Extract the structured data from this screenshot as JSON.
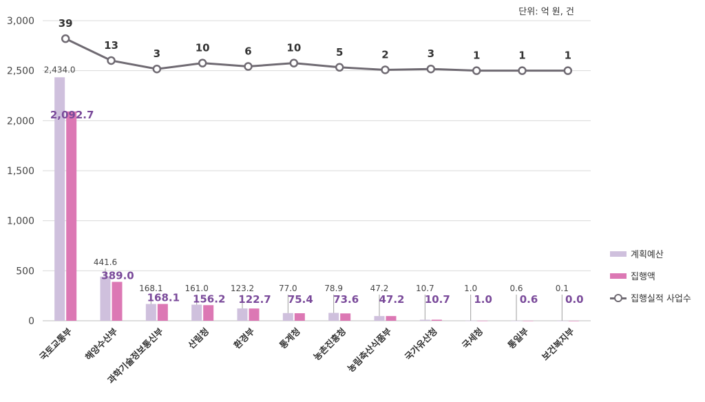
{
  "chart_data": {
    "type": "bar",
    "unit_label": "단위: 억 원, 건",
    "categories": [
      "국토교통부",
      "해양수산부",
      "과학기술정보통신부",
      "산림청",
      "환경부",
      "통계청",
      "농촌진흥청",
      "농림축산식품부",
      "국가유산청",
      "국세청",
      "통일부",
      "보건복지부"
    ],
    "series": [
      {
        "name": "계획예산",
        "kind": "bar",
        "color": "#cfc0dd",
        "values": [
          2434.0,
          441.6,
          168.1,
          161.0,
          123.2,
          77.0,
          78.9,
          47.2,
          10.7,
          1.0,
          0.6,
          0.1
        ],
        "labels": [
          "2,434.0",
          "441.6",
          "168.1",
          "161.0",
          "123.2",
          "77.0",
          "78.9",
          "47.2",
          "10.7",
          "1.0",
          "0.6",
          "0.1"
        ]
      },
      {
        "name": "집행액",
        "kind": "bar",
        "color": "#dc78b4",
        "values": [
          2092.7,
          389.0,
          168.1,
          156.2,
          122.7,
          75.4,
          73.6,
          47.2,
          10.7,
          1.0,
          0.6,
          0.0
        ],
        "labels": [
          "2,092.7",
          "389.0",
          "168.1",
          "156.2",
          "122.7",
          "75.4",
          "73.6",
          "47.2",
          "10.7",
          "1.0",
          "0.6",
          "0.0"
        ]
      },
      {
        "name": "집행실적 사업수",
        "kind": "line",
        "color": "#6f6a72",
        "values": [
          39,
          13,
          3,
          10,
          6,
          10,
          5,
          2,
          3,
          1,
          1,
          1
        ]
      }
    ],
    "ylim": [
      0,
      3000
    ],
    "yticks": [
      0,
      500,
      1000,
      1500,
      2000,
      2500,
      3000
    ],
    "ytick_labels": [
      "0",
      "500",
      "1,000",
      "1,500",
      "2,000",
      "2,500",
      "3,000"
    ],
    "grid": true,
    "legend_position": "right"
  }
}
